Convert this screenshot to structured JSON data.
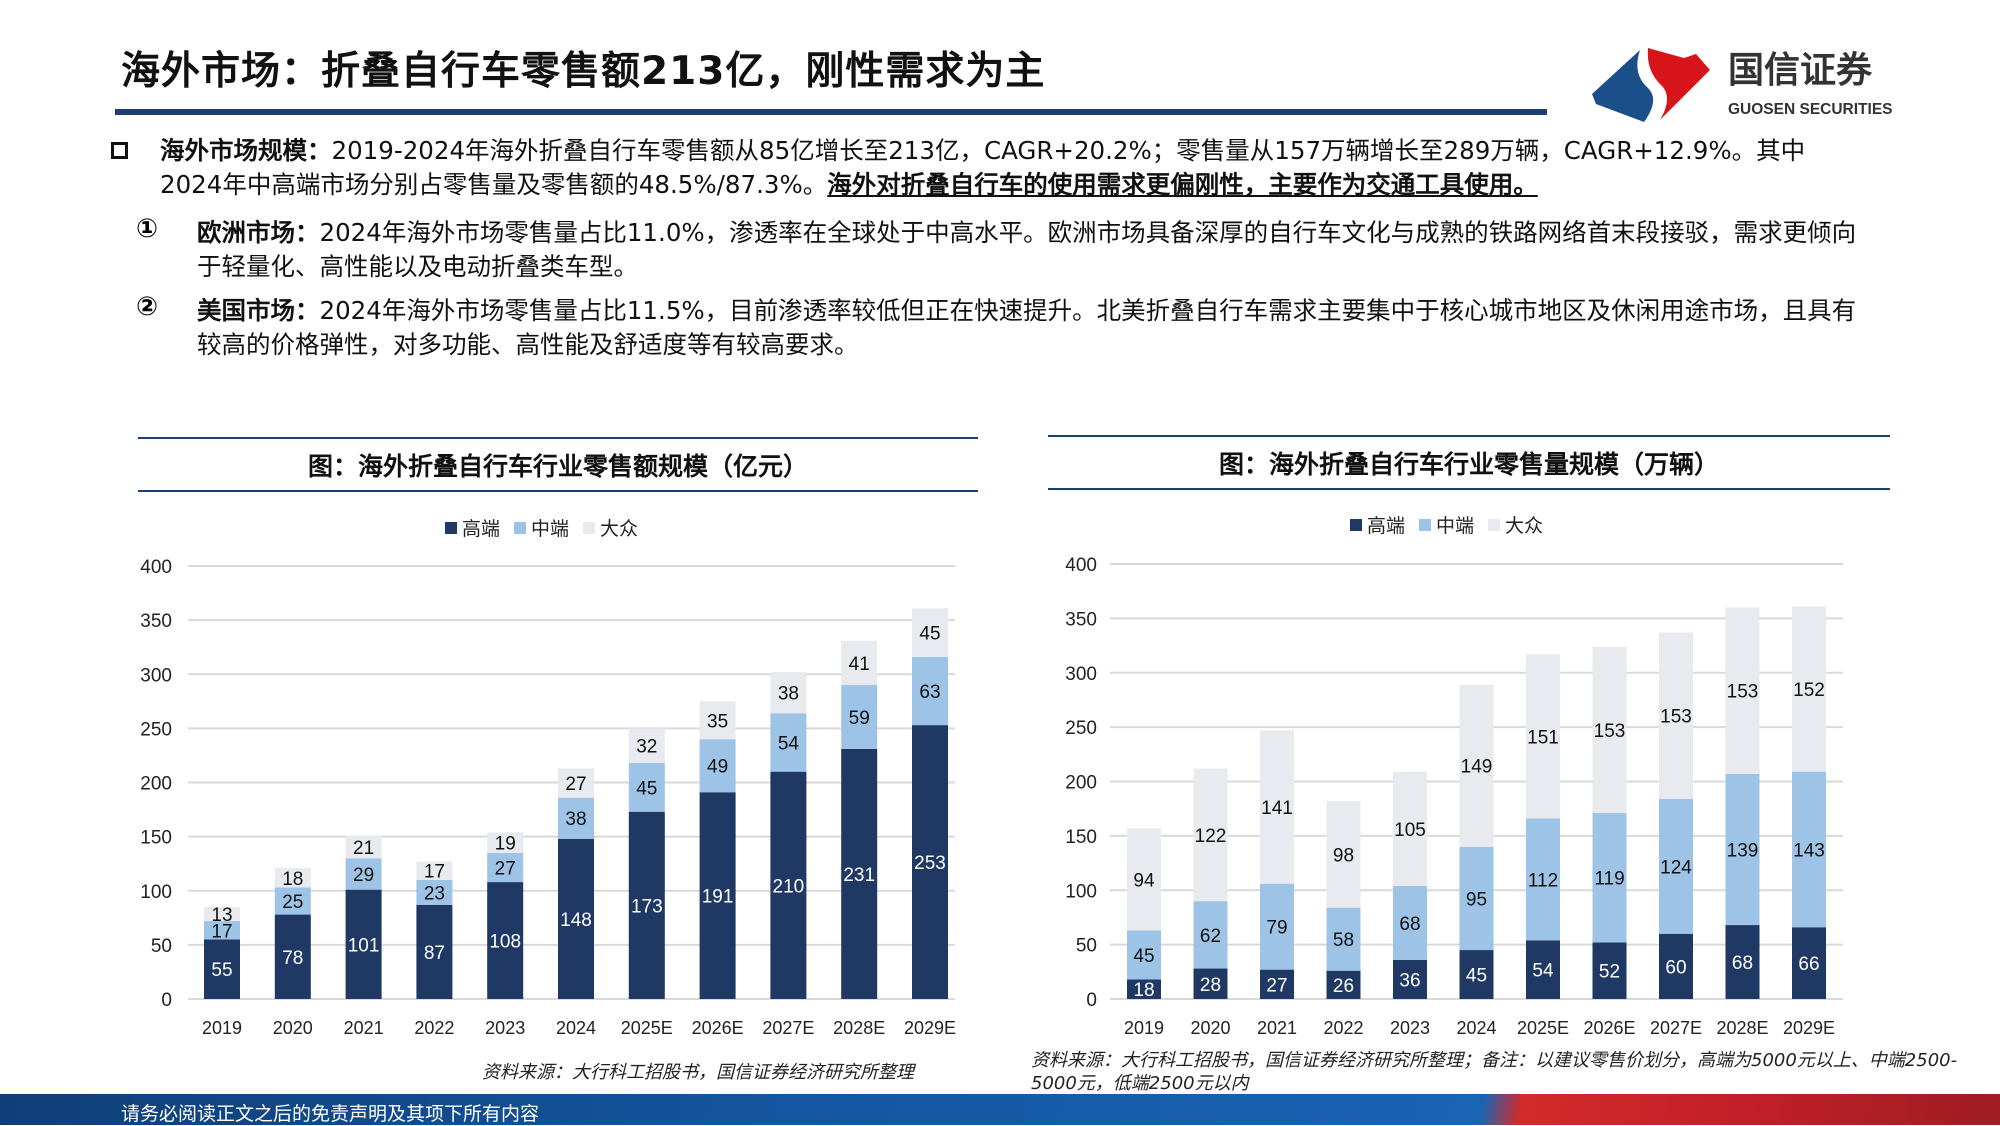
{
  "header": {
    "title": "海外市场：折叠自行车零售额213亿，刚性需求为主",
    "logo": {
      "cn": "国信证券",
      "en": "GUOSEN SECURITIES"
    }
  },
  "body": {
    "main_bullet": {
      "lead": "海外市场规模：",
      "text": "2019-2024年海外折叠自行车零售额从85亿增长至213亿，CAGR+20.2%；零售量从157万辆增长至289万辆，CAGR+12.9%。其中2024年中高端市场分别占零售量及零售额的48.5%/87.3%。",
      "emphasis": "海外对折叠自行车的使用需求更偏刚性，主要作为交通工具使用。"
    },
    "sub_items": [
      {
        "marker": "①",
        "lead": "欧洲市场：",
        "text": "2024年海外市场零售量占比11.0%，渗透率在全球处于中高水平。欧洲市场具备深厚的自行车文化与成熟的铁路网络首末段接驳，需求更倾向于轻量化、高性能以及电动折叠类车型。"
      },
      {
        "marker": "②",
        "lead": "美国市场：",
        "text": "2024年海外市场零售量占比11.5%，目前渗透率较低但正在快速提升。北美折叠自行车需求主要集中于核心城市地区及休闲用途市场，且具有较高的价格弹性，对多功能、高性能及舒适度等有较高要求。"
      }
    ]
  },
  "colors": {
    "high": "#1f3864",
    "mid": "#9dc3e6",
    "mass": "#e8eaef",
    "brand_blue": "#1b3f72",
    "brand_red": "#d7141a"
  },
  "chart_data": [
    {
      "type": "bar",
      "stacked": true,
      "title": "图：海外折叠自行车行业零售额规模（亿元）",
      "categories": [
        "2019",
        "2020",
        "2021",
        "2022",
        "2023",
        "2024",
        "2025E",
        "2026E",
        "2027E",
        "2028E",
        "2029E"
      ],
      "series": [
        {
          "name": "高端",
          "values": [
            55,
            78,
            101,
            87,
            108,
            148,
            173,
            191,
            210,
            231,
            253
          ]
        },
        {
          "name": "中端",
          "values": [
            17,
            25,
            29,
            23,
            27,
            38,
            45,
            49,
            54,
            59,
            63
          ]
        },
        {
          "name": "大众",
          "values": [
            13,
            18,
            21,
            17,
            19,
            27,
            32,
            35,
            38,
            41,
            45
          ]
        }
      ],
      "ylim": [
        0,
        400
      ],
      "yticks": [
        0,
        50,
        100,
        150,
        200,
        250,
        300,
        350,
        400
      ],
      "grid": true,
      "legend": "top",
      "source": "资料来源：大行科工招股书，国信证券经济研究所整理"
    },
    {
      "type": "bar",
      "stacked": true,
      "title": "图：海外折叠自行车行业零售量规模（万辆）",
      "categories": [
        "2019",
        "2020",
        "2021",
        "2022",
        "2023",
        "2024",
        "2025E",
        "2026E",
        "2027E",
        "2028E",
        "2029E"
      ],
      "series": [
        {
          "name": "高端",
          "values": [
            18,
            28,
            27,
            26,
            36,
            45,
            54,
            52,
            60,
            68,
            66
          ]
        },
        {
          "name": "中端",
          "values": [
            45,
            62,
            79,
            58,
            68,
            95,
            112,
            119,
            124,
            139,
            143
          ]
        },
        {
          "name": "大众",
          "values": [
            94,
            122,
            141,
            98,
            105,
            149,
            151,
            153,
            153,
            153,
            152
          ]
        }
      ],
      "ylim": [
        0,
        400
      ],
      "yticks": [
        0,
        50,
        100,
        150,
        200,
        250,
        300,
        350,
        400
      ],
      "grid": true,
      "legend": "top",
      "source": "资料来源：大行科工招股书，国信证券经济研究所整理；备注：以建议零售价划分，高端为5000元以上、中端2500-5000元，低端2500元以内"
    }
  ],
  "footer": {
    "disclaimer": "请务必阅读正文之后的免责声明及其项下所有内容"
  }
}
